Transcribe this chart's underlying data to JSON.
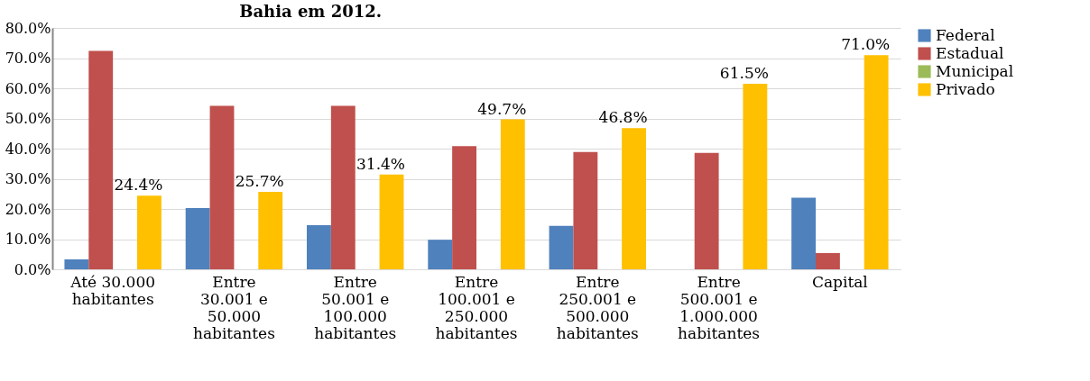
{
  "chart_data": {
    "type": "bar",
    "title": "Bahia em 2012.",
    "categories": [
      "Até 30.000 habitantes",
      "Entre 30.001 e 50.000 habitantes",
      "Entre 50.001 e 100.000 habitantes",
      "Entre 100.001 e 250.000 habitantes",
      "Entre 250.001 e 500.000 habitantes",
      "Entre 500.001 e 1.000.000 habitantes",
      "Capital"
    ],
    "series": [
      {
        "name": "Federal",
        "color": "#4f81bd",
        "values": [
          3.3,
          20.3,
          14.6,
          9.8,
          14.4,
          0,
          23.7
        ]
      },
      {
        "name": "Estadual",
        "color": "#c0504d",
        "values": [
          72.4,
          54.2,
          54.2,
          40.8,
          38.9,
          38.6,
          5.4
        ]
      },
      {
        "name": "Municipal",
        "color": "#9bbb59",
        "values": [
          0,
          0,
          0,
          0,
          0,
          0,
          0
        ]
      },
      {
        "name": "Privado",
        "color": "#ffc000",
        "values": [
          24.4,
          25.7,
          31.4,
          49.7,
          46.8,
          61.5,
          71.0
        ],
        "value_labels": [
          "24.4%",
          "25.7%",
          "31.4%",
          "49.7%",
          "46.8%",
          "61.5%",
          "71.0%"
        ]
      }
    ],
    "ylim": [
      0,
      80
    ],
    "yticks": [
      {
        "value": 0,
        "label": "0.0%"
      },
      {
        "value": 10,
        "label": "10.0%"
      },
      {
        "value": 20,
        "label": "20.0%"
      },
      {
        "value": 30,
        "label": "30.0%"
      },
      {
        "value": 40,
        "label": "40.0%"
      },
      {
        "value": 50,
        "label": "50.0%"
      },
      {
        "value": 60,
        "label": "60.0%"
      },
      {
        "value": 70,
        "label": "70.0%"
      },
      {
        "value": 80,
        "label": "80.0%"
      }
    ],
    "grid": "y",
    "legend": "right"
  }
}
